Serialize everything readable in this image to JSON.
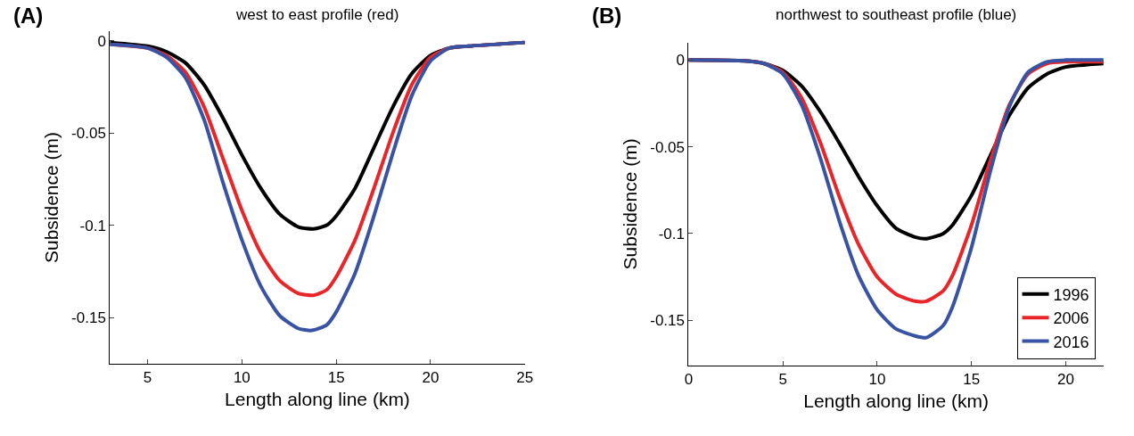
{
  "chart_data": [
    {
      "type": "line",
      "title": "west to east profile (red)",
      "xlabel": "Length along line (km)",
      "ylabel": "Subsidence (m)",
      "annotations": [
        "(A)"
      ],
      "xlim": [
        3,
        25
      ],
      "ylim": [
        -0.175,
        0.005
      ],
      "xticks": [
        5,
        10,
        15,
        20,
        25
      ],
      "yticks": [
        {
          "value": 0,
          "label": "0"
        },
        {
          "value": -0.05,
          "label": "-0.05"
        },
        {
          "value": -0.1,
          "label": "-0.1"
        },
        {
          "value": -0.15,
          "label": "-0.15"
        }
      ],
      "legend": false,
      "series": [
        {
          "color": "#000000",
          "x": [
            3,
            5,
            6,
            7,
            8,
            9,
            10,
            11,
            12,
            13,
            13.8,
            14.5,
            15,
            16,
            17,
            18,
            19,
            20,
            21,
            22,
            25
          ],
          "values": [
            -0.001,
            -0.003,
            -0.006,
            -0.012,
            -0.024,
            -0.042,
            -0.062,
            -0.08,
            -0.094,
            -0.101,
            -0.102,
            -0.1,
            -0.095,
            -0.08,
            -0.058,
            -0.036,
            -0.018,
            -0.008,
            -0.004,
            -0.003,
            -0.001
          ]
        },
        {
          "color": "#e8262a",
          "x": [
            3,
            5,
            6,
            7,
            8,
            9,
            10,
            11,
            12,
            13,
            13.8,
            14.5,
            15,
            16,
            17,
            18,
            19,
            20,
            21,
            22,
            25
          ],
          "values": [
            -0.002,
            -0.004,
            -0.008,
            -0.017,
            -0.036,
            -0.064,
            -0.092,
            -0.115,
            -0.13,
            -0.137,
            -0.138,
            -0.135,
            -0.128,
            -0.108,
            -0.08,
            -0.05,
            -0.024,
            -0.009,
            -0.004,
            -0.003,
            -0.001
          ]
        },
        {
          "color": "#3953a4",
          "x": [
            3,
            5,
            6,
            7,
            8,
            9,
            10,
            11,
            12,
            13,
            13.7,
            14.5,
            15,
            16,
            17,
            18,
            19,
            20,
            21,
            22,
            25
          ],
          "values": [
            -0.002,
            -0.004,
            -0.009,
            -0.02,
            -0.043,
            -0.077,
            -0.108,
            -0.133,
            -0.149,
            -0.156,
            -0.157,
            -0.154,
            -0.147,
            -0.126,
            -0.095,
            -0.061,
            -0.03,
            -0.011,
            -0.004,
            -0.003,
            -0.001
          ]
        }
      ]
    },
    {
      "type": "line",
      "title": "northwest to southeast profile (blue)",
      "xlabel": "Length along line (km)",
      "ylabel": "Subsidence (m)",
      "annotations": [
        "(B)"
      ],
      "xlim": [
        0,
        22
      ],
      "ylim": [
        -0.176,
        0.01
      ],
      "xticks": [
        0,
        5,
        10,
        15,
        20
      ],
      "yticks": [
        {
          "value": 0,
          "label": "0"
        },
        {
          "value": -0.05,
          "label": "-0.05"
        },
        {
          "value": -0.1,
          "label": "-0.1"
        },
        {
          "value": -0.15,
          "label": "-0.15"
        }
      ],
      "legend": "bottom right",
      "series": [
        {
          "name": "1996",
          "color": "#000000",
          "x": [
            0,
            3,
            4,
            5,
            6,
            7,
            8,
            9,
            10,
            11,
            12,
            12.6,
            13.5,
            14,
            15,
            16,
            17,
            18,
            19,
            20,
            22
          ],
          "values": [
            0,
            -0.0005,
            -0.002,
            -0.006,
            -0.015,
            -0.03,
            -0.048,
            -0.067,
            -0.084,
            -0.097,
            -0.102,
            -0.103,
            -0.1,
            -0.095,
            -0.078,
            -0.055,
            -0.032,
            -0.016,
            -0.008,
            -0.004,
            -0.002
          ]
        },
        {
          "name": "2006",
          "color": "#e8262a",
          "x": [
            0,
            3,
            4,
            5,
            6,
            7,
            8,
            9,
            10,
            11,
            12,
            12.6,
            13.5,
            14,
            15,
            16,
            17,
            18,
            19,
            20,
            22
          ],
          "values": [
            0,
            -0.0005,
            -0.002,
            -0.007,
            -0.022,
            -0.048,
            -0.079,
            -0.106,
            -0.125,
            -0.135,
            -0.139,
            -0.139,
            -0.133,
            -0.124,
            -0.095,
            -0.058,
            -0.026,
            -0.008,
            -0.002,
            -0.001,
            -0.001
          ]
        },
        {
          "name": "2016",
          "color": "#3953a4",
          "x": [
            0,
            3,
            4,
            5,
            6,
            7,
            8,
            9,
            10,
            11,
            12,
            12.6,
            13.5,
            14,
            15,
            16,
            17,
            18,
            19,
            20,
            22
          ],
          "values": [
            0,
            -0.0005,
            -0.002,
            -0.008,
            -0.026,
            -0.057,
            -0.093,
            -0.124,
            -0.144,
            -0.155,
            -0.159,
            -0.16,
            -0.153,
            -0.142,
            -0.108,
            -0.064,
            -0.027,
            -0.007,
            -0.001,
            0,
            0
          ]
        }
      ]
    }
  ]
}
